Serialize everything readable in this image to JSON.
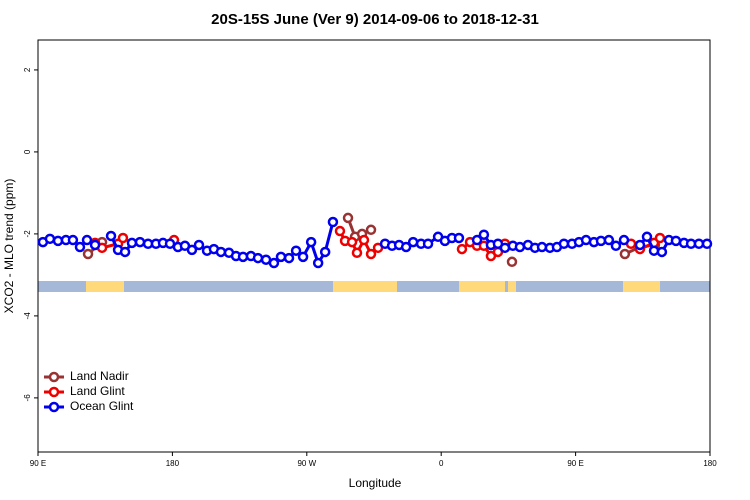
{
  "chart_data": {
    "type": "line",
    "title": "20S-15S June (Ver 9)   2014-09-06 to 2018-12-31",
    "x_label": "Longitude",
    "y_label": "XCO2 - MLO trend (ppm)",
    "xlim": [
      90,
      540
    ],
    "ylim": [
      -7.32,
      2.73
    ],
    "xticks": [
      {
        "value": 90,
        "label": "90 E"
      },
      180,
      {
        "value": 270,
        "label": "90 W"
      },
      {
        "value": 360,
        "label": "0"
      },
      {
        "value": 450,
        "label": "90 E"
      },
      {
        "value": 540,
        "label": "180"
      }
    ],
    "yticks": [
      2,
      0,
      -2,
      -4,
      -6
    ],
    "legend": "bottom-left",
    "series": [
      {
        "name": "Land Nadir",
        "color": "#993333",
        "x": [
          123.5,
          132.9,
          215,
          297.6,
          302.3,
          307,
          313,
          360,
          407.4,
          445,
          483,
          493.1,
          503.1
        ],
        "values": [
          -2.49,
          -2.2,
          null,
          -1.61,
          -2.07,
          -2.0,
          -1.9,
          null,
          -2.68,
          null,
          -2.49,
          -2.32,
          -2.27
        ]
      },
      {
        "name": "Land Glint",
        "color": "#ee0000",
        "x": [
          128.2,
          132.9,
          143.6,
          146.9,
          160,
          181.1,
          240,
          292.2,
          295.6,
          300.3,
          303.6,
          308.3,
          313,
          317.7,
          345,
          373.9,
          379.3,
          384,
          388.6,
          393.3,
          398,
          402.7,
          445,
          487.1,
          493.1,
          502.5,
          506.5
        ],
        "values": [
          -2.22,
          -2.34,
          -2.24,
          -2.1,
          null,
          -2.15,
          null,
          -1.93,
          -2.17,
          -2.2,
          -2.46,
          -2.15,
          -2.49,
          -2.34,
          null,
          -2.37,
          -2.2,
          -2.29,
          -2.29,
          -2.54,
          -2.44,
          -2.24,
          null,
          -2.24,
          -2.37,
          -2.22,
          -2.1
        ]
      },
      {
        "name": "Ocean Glint",
        "color": "#0000ee",
        "x": [
          93.3,
          98,
          103.4,
          108.7,
          113.4,
          118.1,
          122.8,
          128.2,
          133.5,
          138.9,
          143.6,
          148.3,
          152.9,
          158.3,
          163.7,
          169,
          173.7,
          178.4,
          183.7,
          188.4,
          193.1,
          197.8,
          203.2,
          207.8,
          212.5,
          217.9,
          222.6,
          227.3,
          232.6,
          237.3,
          242.7,
          248,
          252.7,
          258.1,
          262.8,
          267.5,
          272.9,
          277.6,
          282.3,
          287.5,
          305,
          322.4,
          327.1,
          331.8,
          336.5,
          341.2,
          346.5,
          351.2,
          357.9,
          362.5,
          367.2,
          371.9,
          378,
          384,
          388.6,
          393.3,
          398,
          402.7,
          408,
          412.7,
          418.1,
          422.8,
          427.5,
          432.8,
          437.5,
          442.2,
          447.6,
          452.3,
          457,
          462.3,
          467,
          472.3,
          477,
          482.4,
          487.7,
          493.1,
          497.8,
          502.5,
          507.8,
          512.5,
          517.2,
          522.6,
          527.3,
          532.6,
          538
        ],
        "values": [
          -2.2,
          -2.12,
          -2.17,
          -2.15,
          -2.15,
          -2.32,
          -2.15,
          -2.27,
          null,
          -2.05,
          -2.39,
          -2.44,
          -2.22,
          -2.2,
          -2.24,
          -2.24,
          -2.22,
          -2.24,
          -2.32,
          -2.29,
          -2.39,
          -2.27,
          -2.41,
          -2.37,
          -2.44,
          -2.46,
          -2.54,
          -2.56,
          -2.54,
          -2.59,
          -2.63,
          -2.71,
          -2.56,
          -2.59,
          -2.41,
          -2.56,
          -2.2,
          -2.71,
          -2.44,
          -1.71,
          null,
          -2.24,
          -2.29,
          -2.27,
          -2.32,
          -2.2,
          -2.24,
          -2.24,
          -2.07,
          -2.17,
          -2.1,
          -2.1,
          null,
          -2.15,
          -2.02,
          -2.27,
          -2.24,
          -2.34,
          -2.29,
          -2.32,
          -2.27,
          -2.34,
          -2.32,
          -2.34,
          -2.32,
          -2.24,
          -2.24,
          -2.2,
          -2.15,
          -2.2,
          -2.17,
          -2.15,
          -2.29,
          -2.15,
          null,
          -2.27,
          -2.07,
          -2.41,
          -2.44,
          -2.15,
          -2.17,
          -2.22,
          -2.24,
          -2.24,
          -2.24
        ]
      }
    ]
  }
}
